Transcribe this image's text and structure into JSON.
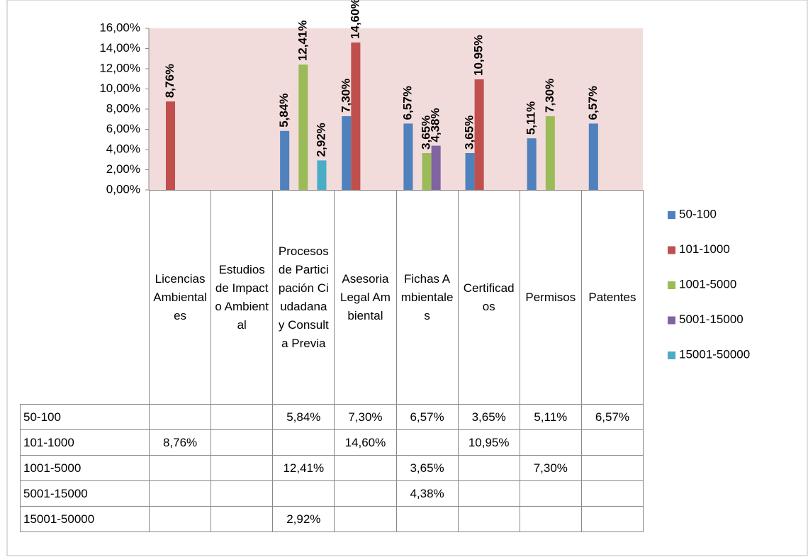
{
  "chart_data": {
    "type": "bar",
    "categories": [
      "Licencias Ambientales",
      "Estudios de Impacto Ambiental",
      "Procesos de Participación Ciudadana y Consulta Previa",
      "Asesoria Legal Ambiental",
      "Fichas Ambientales",
      "Certificados",
      "Permisos",
      "Patentes"
    ],
    "series": [
      {
        "name": "50-100",
        "color": "#4f81bd",
        "values": [
          null,
          null,
          5.84,
          7.3,
          6.57,
          3.65,
          5.11,
          6.57
        ],
        "value_labels": [
          null,
          null,
          "5,84%",
          "7,30%",
          "6,57%",
          "3,65%",
          "5,11%",
          "6,57%"
        ]
      },
      {
        "name": "101-1000",
        "color": "#c0504d",
        "values": [
          8.76,
          null,
          null,
          14.6,
          null,
          10.95,
          null,
          null
        ],
        "value_labels": [
          "8,76%",
          null,
          null,
          "14,60%",
          null,
          "10,95%",
          null,
          null
        ]
      },
      {
        "name": "1001-5000",
        "color": "#9bbb59",
        "values": [
          null,
          null,
          12.41,
          null,
          3.65,
          null,
          7.3,
          null
        ],
        "value_labels": [
          null,
          null,
          "12,41%",
          null,
          "3,65%",
          null,
          "7,30%",
          null
        ]
      },
      {
        "name": "5001-15000",
        "color": "#8064a2",
        "values": [
          null,
          null,
          null,
          null,
          4.38,
          null,
          null,
          null
        ],
        "value_labels": [
          null,
          null,
          null,
          null,
          "4,38%",
          null,
          null,
          null
        ]
      },
      {
        "name": "15001-50000",
        "color": "#4bacc6",
        "values": [
          null,
          null,
          2.92,
          null,
          null,
          null,
          null,
          null
        ],
        "value_labels": [
          null,
          null,
          "2,92%",
          null,
          null,
          null,
          null,
          null
        ]
      }
    ],
    "ylim": [
      0,
      16
    ],
    "yticks": [
      {
        "value": 0,
        "label": "0,00%"
      },
      {
        "value": 2,
        "label": "2,00%"
      },
      {
        "value": 4,
        "label": "4,00%"
      },
      {
        "value": 6,
        "label": "6,00%"
      },
      {
        "value": 8,
        "label": "8,00%"
      },
      {
        "value": 10,
        "label": "10,00%"
      },
      {
        "value": 12,
        "label": "12,00%"
      },
      {
        "value": 14,
        "label": "14,00%"
      },
      {
        "value": 16,
        "label": "16,00%"
      }
    ],
    "legend": "right",
    "plot_background": "#f2dcdb",
    "data_table": true
  }
}
